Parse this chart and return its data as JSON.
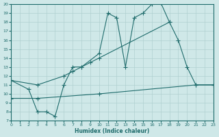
{
  "xlabel": "Humidex (Indice chaleur)",
  "xlim": [
    0,
    23
  ],
  "ylim": [
    7,
    20
  ],
  "yticks": [
    7,
    8,
    9,
    10,
    11,
    12,
    13,
    14,
    15,
    16,
    17,
    18,
    19,
    20
  ],
  "xticks": [
    0,
    1,
    2,
    3,
    4,
    5,
    6,
    7,
    8,
    9,
    10,
    11,
    12,
    13,
    14,
    15,
    16,
    17,
    18,
    19,
    20,
    21,
    22,
    23
  ],
  "bg_color": "#cfe8e8",
  "line_color": "#1e6b6b",
  "grid_color": "#b0d0d0",
  "line1_x": [
    0,
    2,
    3,
    4,
    5,
    6,
    7,
    8,
    10,
    11,
    12,
    13,
    14,
    15,
    16,
    17,
    18,
    19,
    20,
    21,
    23
  ],
  "line1_y": [
    11.5,
    10.5,
    8.0,
    8.0,
    7.5,
    11.0,
    13.0,
    13.0,
    14.5,
    19.0,
    18.5,
    13.0,
    18.5,
    19.0,
    20.0,
    20.2,
    18.0,
    16.0,
    13.0,
    11.0,
    11.0
  ],
  "line2_x": [
    0,
    3,
    6,
    7,
    8,
    9,
    10,
    18
  ],
  "line2_y": [
    11.5,
    11.0,
    12.0,
    12.5,
    13.0,
    13.5,
    14.0,
    18.0
  ],
  "line3_x": [
    0,
    3,
    10,
    21,
    23
  ],
  "line3_y": [
    9.5,
    9.5,
    10.0,
    11.0,
    11.0
  ]
}
